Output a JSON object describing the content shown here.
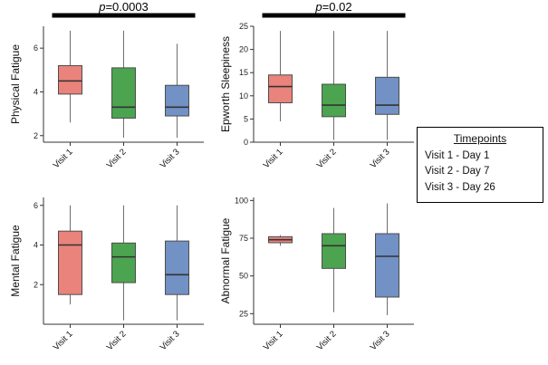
{
  "legend": {
    "title": "Timepoints",
    "items": [
      "Visit 1 - Day 1",
      "Visit 2 - Day 7",
      "Visit 3 - Day 26"
    ]
  },
  "style": {
    "box_colors": [
      "#E9837B",
      "#4CA450",
      "#7291C4"
    ],
    "box_stroke": "#4d4d4d",
    "median_color": "#333333",
    "whisker_color": "#6e6e6e",
    "axis_color": "#333333",
    "significance_bar_color": "#000000"
  },
  "chart_data": [
    {
      "type": "box",
      "ylabel": "Physical Fatigue",
      "p_label": "p=0.0003",
      "categories": [
        "Visit 1",
        "Visit 2",
        "Visit 3"
      ],
      "ylim": [
        1.7,
        7.0
      ],
      "yticks": [
        2,
        4,
        6
      ],
      "boxes": [
        {
          "min": 2.6,
          "q1": 3.9,
          "median": 4.5,
          "q3": 5.2,
          "max": 6.8
        },
        {
          "min": 1.9,
          "q1": 2.8,
          "median": 3.3,
          "q3": 5.1,
          "max": 6.8
        },
        {
          "min": 1.9,
          "q1": 2.9,
          "median": 3.3,
          "q3": 4.3,
          "max": 6.2
        }
      ]
    },
    {
      "type": "box",
      "ylabel": "Epworth Sleepiness",
      "p_label": "p=0.02",
      "categories": [
        "Visit 1",
        "Visit 2",
        "Visit 3"
      ],
      "ylim": [
        0,
        25
      ],
      "yticks": [
        0,
        5,
        10,
        15,
        20,
        25
      ],
      "boxes": [
        {
          "min": 4.5,
          "q1": 8.5,
          "median": 12,
          "q3": 14.5,
          "max": 24
        },
        {
          "min": 0.5,
          "q1": 5.5,
          "median": 8,
          "q3": 12.5,
          "max": 24
        },
        {
          "min": 0.5,
          "q1": 6,
          "median": 8,
          "q3": 14,
          "max": 24
        }
      ]
    },
    {
      "type": "box",
      "ylabel": "Mental Fatigue",
      "p_label": null,
      "categories": [
        "Visit 1",
        "Visit 2",
        "Visit 3"
      ],
      "ylim": [
        0,
        6.4
      ],
      "yticks": [
        2,
        4,
        6
      ],
      "boxes": [
        {
          "min": 1.0,
          "q1": 1.5,
          "median": 4.0,
          "q3": 4.7,
          "max": 6.0
        },
        {
          "min": 0.2,
          "q1": 2.1,
          "median": 3.4,
          "q3": 4.1,
          "max": 6.0
        },
        {
          "min": 0.2,
          "q1": 1.5,
          "median": 2.5,
          "q3": 4.2,
          "max": 6.0
        }
      ]
    },
    {
      "type": "box",
      "ylabel": "Abnormal Fatigue",
      "p_label": null,
      "categories": [
        "Visit 1",
        "Visit 2",
        "Visit 3"
      ],
      "ylim": [
        18,
        102
      ],
      "yticks": [
        25,
        50,
        75,
        100
      ],
      "boxes": [
        {
          "min": 70,
          "q1": 72,
          "median": 74,
          "q3": 76,
          "max": 77
        },
        {
          "min": 26,
          "q1": 55,
          "median": 70,
          "q3": 78,
          "max": 95
        },
        {
          "min": 24,
          "q1": 36,
          "median": 63,
          "q3": 78,
          "max": 98
        }
      ]
    }
  ]
}
